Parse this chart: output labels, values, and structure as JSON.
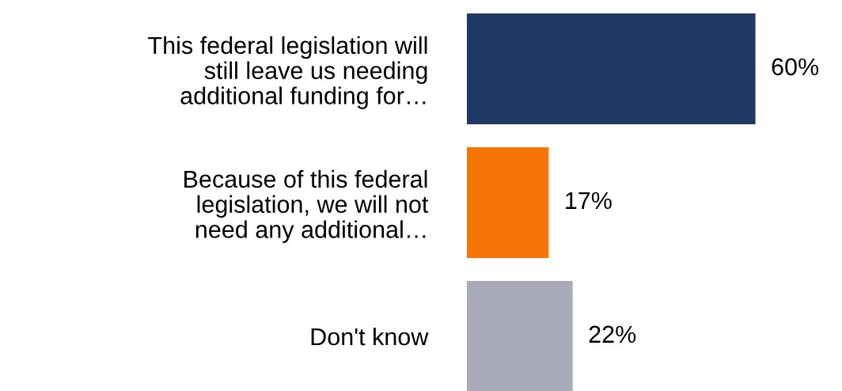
{
  "chart_data": {
    "type": "bar",
    "orientation": "horizontal",
    "categories": [
      "This federal legislation will\nstill leave us needing\nadditional funding for…",
      "Because of this federal\nlegislation, we will not\nneed any additional…",
      "Don't know"
    ],
    "values": [
      60,
      17,
      22
    ],
    "colors": [
      "#1f3864",
      "#f57506",
      "#a9aab8"
    ],
    "value_labels": [
      "60%",
      "17%",
      "22%"
    ],
    "grid": false,
    "tick_labels": "y"
  }
}
